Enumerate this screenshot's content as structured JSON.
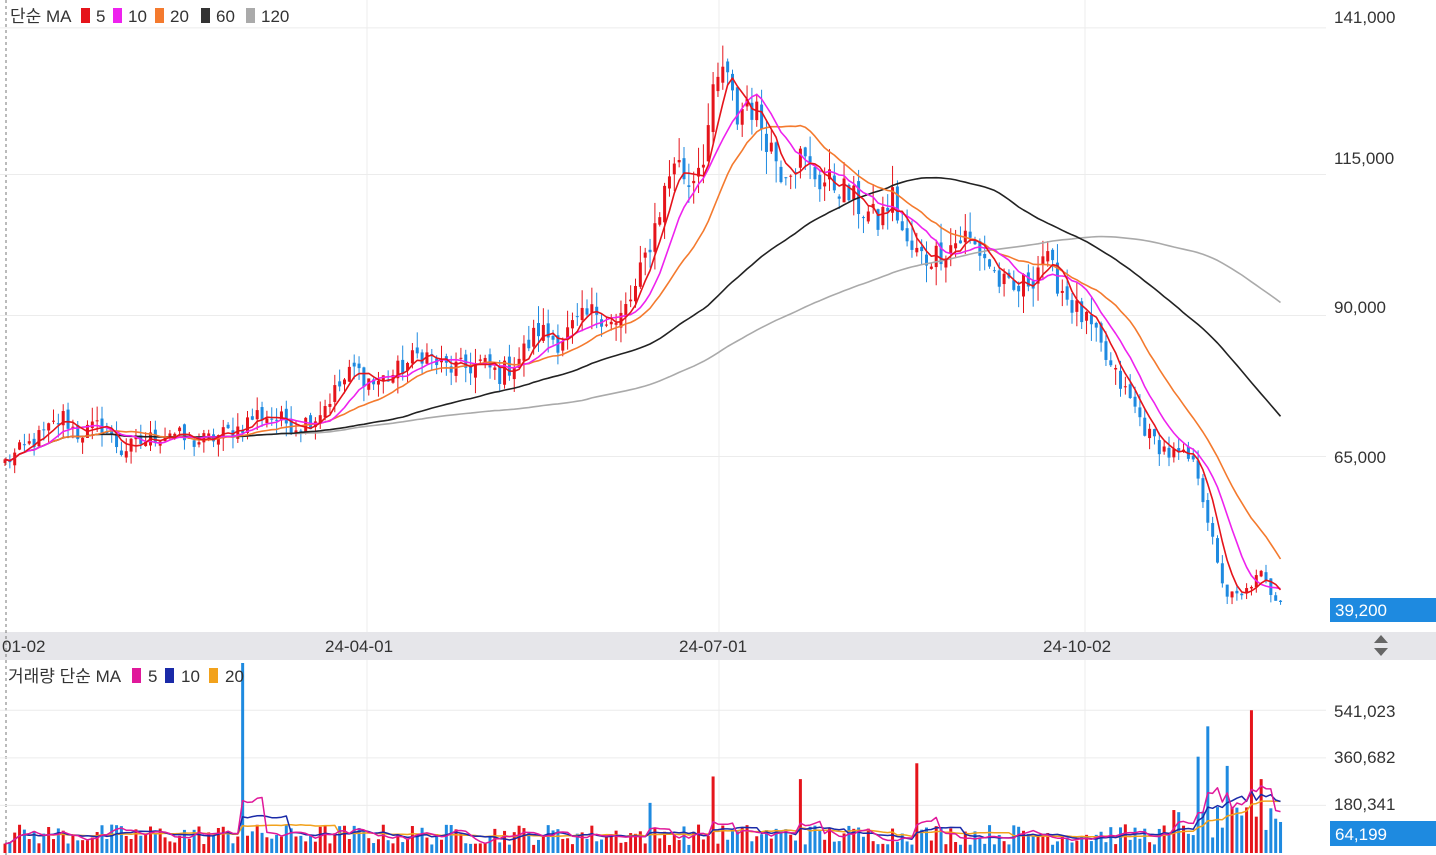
{
  "price_legend": {
    "prefix": "단순 MA",
    "items": [
      {
        "label": "5",
        "color": "#e5141b"
      },
      {
        "label": "10",
        "color": "#ee22ee"
      },
      {
        "label": "20",
        "color": "#f47a2e"
      },
      {
        "label": "60",
        "color": "#333333"
      },
      {
        "label": "120",
        "color": "#aaaaaa"
      }
    ]
  },
  "volume_legend": {
    "prefix": "거래량 단순 MA",
    "items": [
      {
        "label": "5",
        "color": "#e0189a"
      },
      {
        "label": "10",
        "color": "#1a2aa8"
      },
      {
        "label": "20",
        "color": "#f2a21c"
      }
    ]
  },
  "colors": {
    "up": "#e5141b",
    "down": "#1e8ae0",
    "badge": "#1e8ae0",
    "grid": "#ececec"
  },
  "price_axis": {
    "ticks": [
      "141,000",
      "115,000",
      "90,000",
      "65,000"
    ],
    "current": "39,200"
  },
  "volume_axis": {
    "ticks": [
      "541,023",
      "360,682",
      "180,341"
    ],
    "current": "64,199"
  },
  "x_axis": {
    "labels": [
      "01-02",
      "24-04-01",
      "24-07-01",
      "24-10-02"
    ]
  },
  "chart_data": {
    "type": "candlestick",
    "price_range": [
      36000,
      144000
    ],
    "volume_range": [
      0,
      720000
    ],
    "anchors": [
      [
        0,
        64000
      ],
      [
        4,
        66500
      ],
      [
        8,
        69000
      ],
      [
        12,
        72000
      ],
      [
        15,
        69000
      ],
      [
        20,
        70500
      ],
      [
        24,
        66000
      ],
      [
        28,
        67500
      ],
      [
        34,
        69500
      ],
      [
        38,
        67500
      ],
      [
        42,
        68000
      ],
      [
        48,
        70000
      ],
      [
        52,
        72500
      ],
      [
        55,
        72000
      ],
      [
        60,
        70500
      ],
      [
        64,
        72000
      ],
      [
        68,
        76500
      ],
      [
        72,
        80500
      ],
      [
        76,
        78000
      ],
      [
        80,
        79500
      ],
      [
        86,
        83500
      ],
      [
        90,
        81000
      ],
      [
        94,
        80500
      ],
      [
        98,
        81500
      ],
      [
        102,
        79500
      ],
      [
        106,
        82500
      ],
      [
        110,
        87500
      ],
      [
        114,
        85500
      ],
      [
        118,
        88500
      ],
      [
        122,
        91000
      ],
      [
        126,
        88000
      ],
      [
        130,
        94500
      ],
      [
        134,
        106000
      ],
      [
        138,
        118000
      ],
      [
        141,
        113500
      ],
      [
        144,
        119000
      ],
      [
        146,
        128000
      ],
      [
        148,
        134000
      ],
      [
        151,
        125000
      ],
      [
        153,
        128500
      ],
      [
        156,
        124000
      ],
      [
        160,
        116000
      ],
      [
        164,
        118000
      ],
      [
        168,
        114000
      ],
      [
        172,
        113000
      ],
      [
        176,
        109500
      ],
      [
        180,
        106500
      ],
      [
        183,
        111000
      ],
      [
        186,
        102000
      ],
      [
        190,
        100000
      ],
      [
        194,
        102000
      ],
      [
        198,
        104000
      ],
      [
        202,
        100500
      ],
      [
        205,
        96000
      ],
      [
        208,
        94000
      ],
      [
        212,
        97000
      ],
      [
        214,
        101000
      ],
      [
        216,
        97500
      ],
      [
        220,
        92000
      ],
      [
        224,
        87500
      ],
      [
        228,
        80500
      ],
      [
        232,
        75000
      ],
      [
        236,
        68500
      ],
      [
        240,
        65500
      ],
      [
        244,
        64500
      ],
      [
        246,
        62000
      ],
      [
        248,
        54000
      ],
      [
        250,
        45500
      ],
      [
        252,
        40500
      ],
      [
        255,
        40000
      ],
      [
        257,
        42500
      ],
      [
        259,
        44000
      ],
      [
        261,
        41000
      ],
      [
        263,
        39200
      ]
    ],
    "volume_spikes": [
      [
        49,
        720000
      ],
      [
        133,
        190000
      ],
      [
        146,
        290000
      ],
      [
        164,
        280000
      ],
      [
        188,
        340000
      ],
      [
        246,
        365000
      ],
      [
        248,
        480000
      ],
      [
        252,
        330000
      ],
      [
        257,
        541000
      ],
      [
        259,
        280000
      ],
      [
        262,
        130000
      ]
    ],
    "sessions": 264,
    "ma_price": [
      "5",
      "10",
      "20",
      "60",
      "120"
    ],
    "ma_volume": [
      "5",
      "10",
      "20"
    ]
  }
}
